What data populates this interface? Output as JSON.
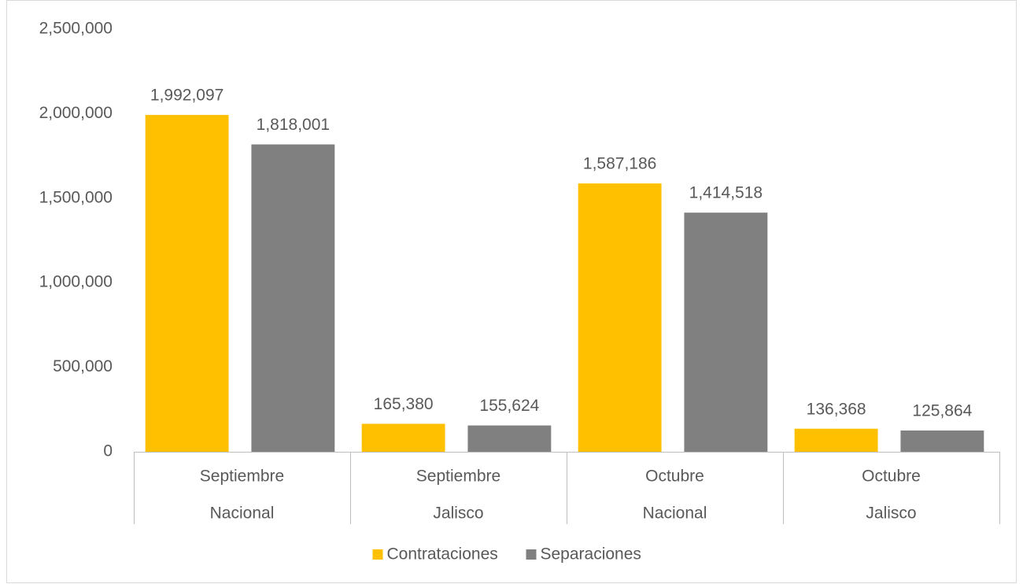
{
  "chart_data": {
    "type": "bar",
    "categories": [
      [
        "Septiembre",
        "Nacional"
      ],
      [
        "Septiembre",
        "Jalisco"
      ],
      [
        "Octubre",
        "Nacional"
      ],
      [
        "Octubre",
        "Jalisco"
      ]
    ],
    "series": [
      {
        "name": "Contrataciones",
        "color": "#ffc000",
        "values": [
          1992097,
          165380,
          1587186,
          136368
        ],
        "value_labels": [
          "1,992,097",
          "165,380",
          "1,587,186",
          "136,368"
        ]
      },
      {
        "name": "Separaciones",
        "color": "#808080",
        "values": [
          1818001,
          155624,
          1414518,
          125864
        ],
        "value_labels": [
          "1,818,001",
          "155,624",
          "1,414,518",
          "125,864"
        ]
      }
    ],
    "ylim": [
      0,
      2500000
    ],
    "yticks": [
      0,
      {
        "value": 500000,
        "label": "500,000"
      },
      {
        "value": 1000000,
        "label": "1,000,000"
      },
      {
        "value": 1500000,
        "label": "1,500,000"
      },
      {
        "value": 2000000,
        "label": "2,000,000"
      },
      {
        "value": 2500000,
        "label": "2,500,000"
      }
    ],
    "grid": false,
    "legend": "bottom"
  }
}
